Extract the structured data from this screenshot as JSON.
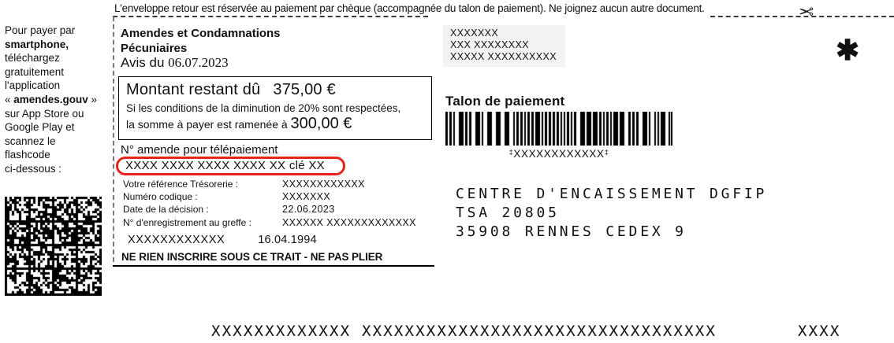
{
  "colors": {
    "accent_red": "#e8231a",
    "recipient_bg": "#f3f3f3",
    "ink": "#111111"
  },
  "icons": {
    "scissors": "✂",
    "asterisk": "✱"
  },
  "top_note": "L'enveloppe retour est réservée au paiement par chèque (accompagnée du talon de paiement). Ne joignez aucun autre document.",
  "sidebar": {
    "l1": "Pour payer par",
    "l2": "smartphone,",
    "l3": "téléchargez",
    "l4": "gratuitement",
    "l5": "l'application",
    "l6a": "« ",
    "l6b": "amendes.gouv",
    "l6c": " »",
    "l7": "sur App Store ou",
    "l8": "Google Play et",
    "l9": "scannez le",
    "l10": "flashcode",
    "l11": "ci-dessous :"
  },
  "notice": {
    "title_line1": "Amendes et Condamnations",
    "title_line2": "Pécuniaires",
    "avis_label": "Avis du ",
    "avis_date": "06.07.2023"
  },
  "amount_box": {
    "label": "Montant restant dû",
    "amount": "375,00 €",
    "condition_line1": "Si les conditions de la diminution de 20% sont respectées,",
    "condition_line2": "la somme à payer est ramenée à ",
    "reduced_amount": "300,00 €"
  },
  "telepayment": {
    "label": "N° amende pour télépaiement",
    "number": "XXXX XXXX XXXX XXXX XX clé XX"
  },
  "references": {
    "rows": [
      {
        "label": "Votre référence Trésorerie :",
        "value": "XXXXXXXXXXXX"
      },
      {
        "label": "Numéro codique :",
        "value": "XXXXXXX"
      },
      {
        "label": "Date de la décision :",
        "value": "22.06.2023"
      },
      {
        "label": "N° d'enregistrement au greffe :",
        "value": "XXXXXX XXXXXXXXXXXXX"
      }
    ]
  },
  "debtor": {
    "name": "XXXXXXXXXXXX",
    "birthdate": "16.04.1994"
  },
  "fold_warning": "NE RIEN INSCRIRE SOUS CE TRAIT - NE PAS PLIER",
  "recipient": {
    "lines": [
      "XXXXXXX",
      "XXX XXXXXXXX",
      "XXXXX XXXXXXXXXX"
    ]
  },
  "talon": {
    "title": "Talon de paiement",
    "barcode_start": "‡",
    "barcode_value": "XXXXXXXXXXXX",
    "barcode_end": "‡",
    "address_lines": [
      "CENTRE D'ENCAISSEMENT DGFIP",
      "TSA 20805",
      "35908 RENNES CEDEX 9"
    ]
  },
  "footer_line": {
    "left": "XXXXXXXXXXXXX XXXXXXXXXXXXXXXXXXXXXXXXXXXXXXXXX",
    "right": "XXXX"
  }
}
